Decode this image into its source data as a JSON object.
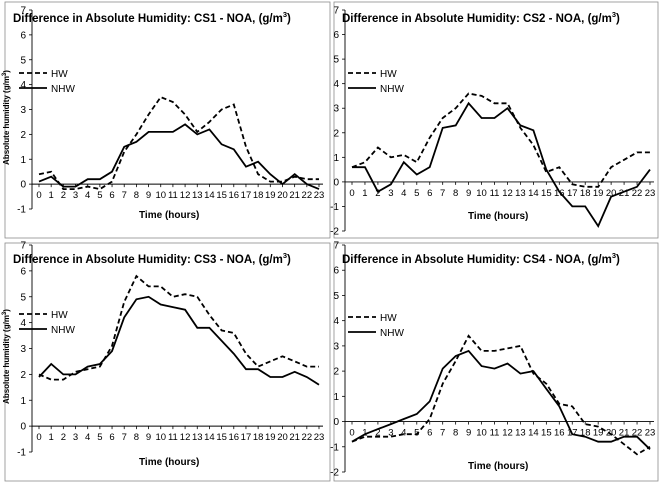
{
  "chart_data": [
    {
      "type": "line",
      "title": "Difference in Absolute Humidity: CS1 - NOA, (g/m",
      "title_sup": "3",
      "title_end": ")",
      "xlabel": "Time (hours)",
      "ylabel": "Absolute humidity (g/m",
      "ylabel_sup": "3",
      "ylabel_end": ")",
      "show_ylabel": true,
      "ylim": [
        -1,
        7
      ],
      "yticks": [
        -1,
        0,
        1,
        2,
        3,
        4,
        5,
        6,
        7
      ],
      "x": [
        0,
        1,
        2,
        3,
        4,
        5,
        6,
        7,
        8,
        9,
        10,
        11,
        12,
        13,
        14,
        15,
        16,
        17,
        18,
        19,
        20,
        21,
        22,
        23
      ],
      "legend_position": "top-left",
      "series": [
        {
          "name": "HW",
          "style": "dashed",
          "values": [
            0.4,
            0.5,
            -0.2,
            -0.2,
            -0.1,
            -0.2,
            0.1,
            1.3,
            2.0,
            2.8,
            3.5,
            3.3,
            2.8,
            2.1,
            2.5,
            3.0,
            3.2,
            1.5,
            0.4,
            0.1,
            0.1,
            0.3,
            0.2,
            0.2
          ]
        },
        {
          "name": "NHW",
          "style": "solid",
          "values": [
            0.1,
            0.3,
            -0.1,
            -0.1,
            0.2,
            0.2,
            0.5,
            1.5,
            1.7,
            2.1,
            2.1,
            2.1,
            2.4,
            2.0,
            2.2,
            1.6,
            1.4,
            0.7,
            0.9,
            0.4,
            0.0,
            0.4,
            0.0,
            -0.2
          ]
        }
      ]
    },
    {
      "type": "line",
      "title": "Difference in Absolute Humidity: CS2 - NOA, (g/m",
      "title_sup": "3",
      "title_end": ")",
      "xlabel": "Time (hours)",
      "show_ylabel": false,
      "ylim": [
        -2,
        7
      ],
      "yticks": [
        -2,
        -1,
        0,
        1,
        2,
        3,
        4,
        5,
        6,
        7
      ],
      "x": [
        0,
        1,
        2,
        3,
        4,
        5,
        6,
        7,
        8,
        9,
        10,
        11,
        12,
        13,
        14,
        15,
        16,
        17,
        18,
        19,
        20,
        21,
        22,
        23
      ],
      "legend_position": "top-left",
      "series": [
        {
          "name": "HW",
          "style": "dashed",
          "values": [
            0.6,
            0.8,
            1.4,
            1.0,
            1.1,
            0.8,
            1.8,
            2.6,
            3.0,
            3.6,
            3.5,
            3.2,
            3.2,
            2.2,
            1.5,
            0.4,
            0.6,
            -0.1,
            -0.2,
            -0.2,
            0.6,
            0.9,
            1.2,
            1.2
          ]
        },
        {
          "name": "NHW",
          "style": "solid",
          "values": [
            0.6,
            0.6,
            -0.4,
            -0.1,
            0.8,
            0.3,
            0.6,
            2.2,
            2.3,
            3.2,
            2.6,
            2.6,
            3.0,
            2.3,
            2.1,
            0.5,
            -0.4,
            -1.0,
            -1.0,
            -1.8,
            -0.6,
            -0.4,
            -0.2,
            0.5
          ]
        }
      ]
    },
    {
      "type": "line",
      "title": "Difference in Absolute Humidity: CS3  - NOA, (g/m",
      "title_sup": "3",
      "title_end": ")",
      "xlabel": "Time (hours)",
      "ylabel": "Absolute humidity (g/m",
      "ylabel_sup": "3",
      "ylabel_end": ")",
      "show_ylabel": true,
      "ylim": [
        -1,
        7
      ],
      "yticks": [
        -1,
        0,
        1,
        2,
        3,
        4,
        5,
        6,
        7
      ],
      "x": [
        0,
        1,
        2,
        3,
        4,
        5,
        6,
        7,
        8,
        9,
        10,
        11,
        12,
        13,
        14,
        15,
        16,
        17,
        18,
        19,
        20,
        21,
        22,
        23
      ],
      "legend_position": "top-left",
      "series": [
        {
          "name": "HW",
          "style": "dashed",
          "values": [
            2.0,
            1.8,
            1.8,
            2.1,
            2.2,
            2.3,
            3.1,
            4.8,
            5.8,
            5.4,
            5.4,
            5.0,
            5.1,
            5.0,
            4.3,
            3.7,
            3.6,
            2.8,
            2.3,
            2.5,
            2.7,
            2.5,
            2.3,
            2.3
          ]
        },
        {
          "name": "NHW",
          "style": "solid",
          "values": [
            1.9,
            2.4,
            2.0,
            2.0,
            2.3,
            2.4,
            2.9,
            4.2,
            4.9,
            5.0,
            4.7,
            4.6,
            4.5,
            3.8,
            3.8,
            3.3,
            2.8,
            2.2,
            2.2,
            1.9,
            1.9,
            2.1,
            1.9,
            1.6
          ]
        }
      ]
    },
    {
      "type": "line",
      "title": "Difference in Absolute Humidity: CS4 - NOA, (g/m",
      "title_sup": "3",
      "title_end": ")",
      "xlabel": "Time (hours)",
      "show_ylabel": false,
      "ylim": [
        -2,
        7
      ],
      "yticks": [
        -2,
        -1,
        0,
        1,
        2,
        3,
        4,
        5,
        6,
        7
      ],
      "x": [
        0,
        1,
        2,
        3,
        4,
        5,
        6,
        7,
        8,
        9,
        10,
        11,
        12,
        13,
        14,
        15,
        16,
        17,
        18,
        19,
        20,
        21,
        22,
        23
      ],
      "legend_position": "top-left",
      "series": [
        {
          "name": "HW",
          "style": "dashed",
          "values": [
            -0.8,
            -0.6,
            -0.6,
            -0.6,
            -0.5,
            -0.5,
            0.1,
            1.5,
            2.4,
            3.4,
            2.8,
            2.8,
            2.9,
            3.0,
            1.9,
            1.5,
            0.7,
            0.6,
            -0.1,
            -0.2,
            -0.5,
            -0.9,
            -1.3,
            -1.0
          ]
        },
        {
          "name": "NHW",
          "style": "solid",
          "values": [
            -0.8,
            -0.5,
            -0.3,
            -0.1,
            0.1,
            0.3,
            0.8,
            2.1,
            2.6,
            2.8,
            2.2,
            2.1,
            2.3,
            1.9,
            2.0,
            1.3,
            0.6,
            -0.5,
            -0.6,
            -0.8,
            -0.8,
            -0.6,
            -0.6,
            -1.1
          ]
        }
      ]
    }
  ]
}
